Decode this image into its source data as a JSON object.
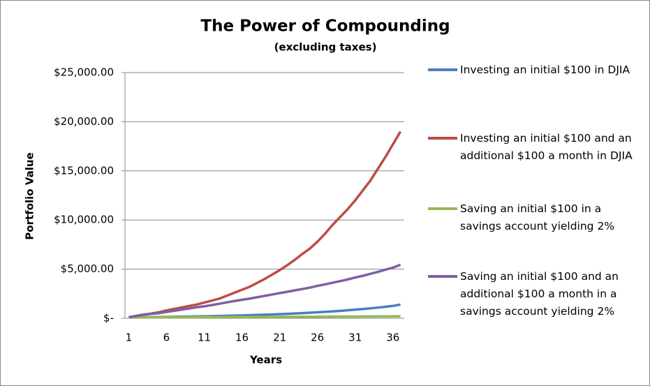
{
  "chart_data": {
    "type": "line",
    "title": "The Power of Compounding",
    "subtitle": "(excluding taxes)",
    "x_label": "Years",
    "y_label": "Portfolio Value",
    "categories": [
      1,
      null,
      null,
      null,
      null,
      6,
      null,
      null,
      null,
      null,
      11,
      null,
      null,
      null,
      null,
      16,
      null,
      null,
      null,
      null,
      21,
      null,
      null,
      null,
      null,
      26,
      null,
      null,
      null,
      null,
      31,
      null,
      null,
      null,
      null,
      36,
      null
    ],
    "ylim": [
      0,
      25000
    ],
    "yticks": [
      {
        "value": 0,
        "label": "$-"
      },
      {
        "value": 5000,
        "label": "$5,000.00"
      },
      {
        "value": 10000,
        "label": "$10,000.00"
      },
      {
        "value": 15000,
        "label": "$15,000.00"
      },
      {
        "value": 20000,
        "label": "$20,000.00"
      },
      {
        "value": 25000,
        "label": "$25,000.00"
      }
    ],
    "grid": true,
    "legend": "right",
    "series": [
      {
        "name": "Investing an initial $100 in DJIA",
        "color": "#4a7ebb",
        "values": [
          100,
          108,
          116,
          124,
          134,
          144,
          154,
          166,
          178,
          192,
          206,
          221,
          238,
          256,
          275,
          296,
          318,
          342,
          368,
          395,
          425,
          457,
          491,
          528,
          567,
          610,
          656,
          705,
          758,
          815,
          876,
          941,
          1012,
          1088,
          1169,
          1257,
          1400
        ]
      },
      {
        "name": "Investing an initial $100 and an additional $100 a month in DJIA",
        "color": "#be4b48",
        "values": [
          100,
          250,
          380,
          480,
          620,
          800,
          950,
          1100,
          1250,
          1400,
          1600,
          1800,
          2000,
          2300,
          2600,
          2900,
          3200,
          3600,
          4000,
          4450,
          4900,
          5400,
          5950,
          6550,
          7100,
          7800,
          8600,
          9500,
          10300,
          11100,
          12000,
          13000,
          14000,
          15200,
          16400,
          17700,
          19000
        ]
      },
      {
        "name": "Saving an initial $100 in a savings account yielding 2%",
        "color": "#98b954",
        "values": [
          100,
          102,
          104,
          106,
          108,
          110,
          113,
          115,
          117,
          120,
          122,
          124,
          127,
          129,
          132,
          135,
          137,
          140,
          143,
          146,
          149,
          152,
          155,
          158,
          161,
          164,
          167,
          171,
          174,
          178,
          181,
          185,
          189,
          192,
          196,
          200,
          204
        ]
      },
      {
        "name": "Saving an initial $100 and an additional $100 a month in a savings account yielding 2%",
        "color": "#7d60a0",
        "values": [
          100,
          230,
          360,
          450,
          520,
          650,
          760,
          880,
          1000,
          1120,
          1220,
          1340,
          1480,
          1620,
          1760,
          1880,
          2000,
          2140,
          2280,
          2420,
          2560,
          2700,
          2840,
          2980,
          3120,
          3300,
          3450,
          3620,
          3780,
          3950,
          4150,
          4320,
          4520,
          4720,
          4950,
          5150,
          5450
        ]
      }
    ]
  }
}
